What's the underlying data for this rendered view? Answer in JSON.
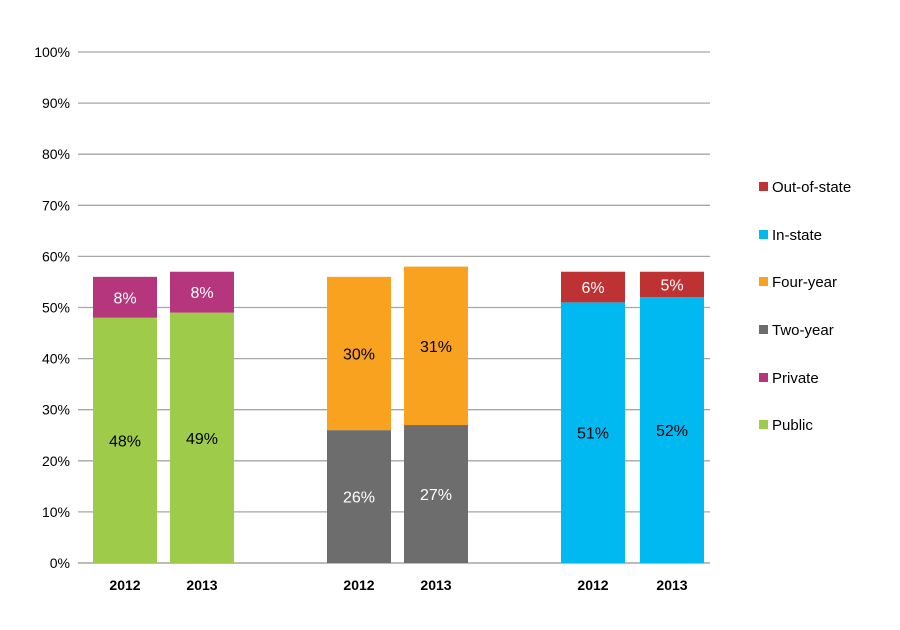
{
  "chart_data": {
    "type": "bar",
    "stacked": true,
    "ylim": [
      0,
      100
    ],
    "yticks": [
      "0%",
      "10%",
      "20%",
      "30%",
      "40%",
      "50%",
      "60%",
      "70%",
      "80%",
      "90%",
      "100%"
    ],
    "grid": true,
    "legend_placement": "right",
    "categories": [
      "2012",
      "2013",
      "2012",
      "2013",
      "2012",
      "2013"
    ],
    "series": [
      {
        "name": "Public",
        "color": "#9fcb4b",
        "label_color": "#000000",
        "values": [
          48,
          49,
          null,
          null,
          null,
          null
        ],
        "labels": [
          "48%",
          "49%",
          "",
          "",
          "",
          ""
        ]
      },
      {
        "name": "Private",
        "color": "#b5367c",
        "label_color": "#ffffff",
        "values": [
          8,
          8,
          null,
          null,
          null,
          null
        ],
        "labels": [
          "8%",
          "8%",
          "",
          "",
          "",
          ""
        ]
      },
      {
        "name": "Two-year",
        "color": "#6d6d6d",
        "label_color": "#ffffff",
        "values": [
          null,
          null,
          26,
          27,
          null,
          null
        ],
        "labels": [
          "",
          "",
          "26%",
          "27%",
          "",
          ""
        ]
      },
      {
        "name": "Four-year",
        "color": "#f9a21f",
        "label_color": "#000000",
        "values": [
          null,
          null,
          30,
          31,
          null,
          null
        ],
        "labels": [
          "",
          "",
          "30%",
          "31%",
          "",
          ""
        ]
      },
      {
        "name": "In-state",
        "color": "#00b9f0",
        "label_color": "#000000",
        "values": [
          null,
          null,
          null,
          null,
          51,
          52
        ],
        "labels": [
          "",
          "",
          "",
          "",
          "51%",
          "52%"
        ]
      },
      {
        "name": "Out-of-state",
        "color": "#be3234",
        "label_color": "#ffffff",
        "values": [
          null,
          null,
          null,
          null,
          6,
          5
        ],
        "labels": [
          "",
          "",
          "",
          "",
          "6%",
          "5%"
        ]
      }
    ],
    "legend_order": [
      "Out-of-state",
      "In-state",
      "Four-year",
      "Two-year",
      "Private",
      "Public"
    ]
  }
}
